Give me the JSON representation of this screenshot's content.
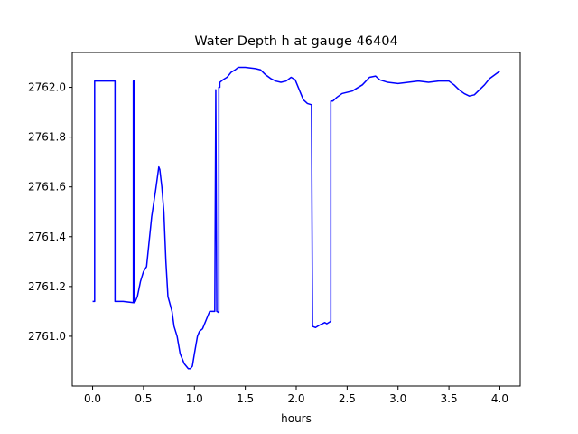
{
  "chart_data": {
    "type": "line",
    "title": "Water Depth h at gauge 46404",
    "xlabel": "hours",
    "ylabel": "",
    "xlim": [
      -0.2,
      4.2
    ],
    "ylim": [
      2760.8,
      2762.14
    ],
    "grid": false,
    "legend": "none",
    "x_ticks": [
      0.0,
      0.5,
      1.0,
      1.5,
      2.0,
      2.5,
      3.0,
      3.5,
      4.0
    ],
    "x_tick_labels": [
      "0.0",
      "0.5",
      "1.0",
      "1.5",
      "2.0",
      "2.5",
      "3.0",
      "3.5",
      "4.0"
    ],
    "y_ticks": [
      2761.0,
      2761.2,
      2761.4,
      2761.6,
      2761.8,
      2762.0
    ],
    "y_tick_labels": [
      "2761.0",
      "2761.2",
      "2761.4",
      "2761.6",
      "2761.8",
      "2762.0"
    ],
    "series": [
      {
        "color": "#0000ff",
        "x": [
          0.0,
          0.02,
          0.02,
          0.22,
          0.22,
          0.3,
          0.4,
          0.4,
          0.41,
          0.41,
          0.42,
          0.44,
          0.47,
          0.5,
          0.53,
          0.58,
          0.62,
          0.65,
          0.66,
          0.68,
          0.7,
          0.72,
          0.74,
          0.76,
          0.78,
          0.8,
          0.83,
          0.86,
          0.9,
          0.94,
          0.96,
          0.98,
          1.0,
          1.03,
          1.05,
          1.08,
          1.12,
          1.15,
          1.18,
          1.2,
          1.21,
          1.21,
          1.22,
          1.22,
          1.24,
          1.24,
          1.25,
          1.25,
          1.28,
          1.32,
          1.36,
          1.4,
          1.43,
          1.5,
          1.6,
          1.65,
          1.7,
          1.75,
          1.8,
          1.85,
          1.9,
          1.95,
          1.99,
          2.03,
          2.07,
          2.11,
          2.15,
          2.16,
          2.19,
          2.23,
          2.28,
          2.3,
          2.32,
          2.34,
          2.34,
          2.36,
          2.4,
          2.45,
          2.55,
          2.65,
          2.72,
          2.78,
          2.82,
          2.9,
          3.0,
          3.1,
          3.2,
          3.3,
          3.4,
          3.45,
          3.5,
          3.55,
          3.6,
          3.65,
          3.7,
          3.75,
          3.8,
          3.85,
          3.9,
          3.95,
          4.0
        ],
        "values": [
          2761.14,
          2761.14,
          2762.025,
          2762.025,
          2761.14,
          2761.14,
          2761.135,
          2762.025,
          2762.025,
          2761.135,
          2761.14,
          2761.16,
          2761.22,
          2761.26,
          2761.28,
          2761.48,
          2761.59,
          2761.68,
          2761.67,
          2761.6,
          2761.5,
          2761.3,
          2761.16,
          2761.13,
          2761.1,
          2761.04,
          2761.0,
          2760.93,
          2760.89,
          2760.87,
          2760.87,
          2760.88,
          2760.93,
          2761.0,
          2761.02,
          2761.03,
          2761.07,
          2761.1,
          2761.1,
          2761.1,
          2761.99,
          2761.99,
          2761.1,
          2761.1,
          2761.095,
          2762.0,
          2762.0,
          2762.02,
          2762.03,
          2762.04,
          2762.06,
          2762.07,
          2762.08,
          2762.08,
          2762.075,
          2762.07,
          2762.05,
          2762.035,
          2762.025,
          2762.02,
          2762.025,
          2762.04,
          2762.03,
          2761.99,
          2761.95,
          2761.935,
          2761.93,
          2761.04,
          2761.035,
          2761.045,
          2761.055,
          2761.05,
          2761.055,
          2761.06,
          2761.945,
          2761.945,
          2761.96,
          2761.975,
          2761.985,
          2762.01,
          2762.04,
          2762.045,
          2762.03,
          2762.02,
          2762.015,
          2762.02,
          2762.025,
          2762.02,
          2762.025,
          2762.025,
          2762.025,
          2762.01,
          2761.99,
          2761.975,
          2761.965,
          2761.97,
          2761.99,
          2762.01,
          2762.035,
          2762.05,
          2762.065
        ]
      }
    ]
  }
}
